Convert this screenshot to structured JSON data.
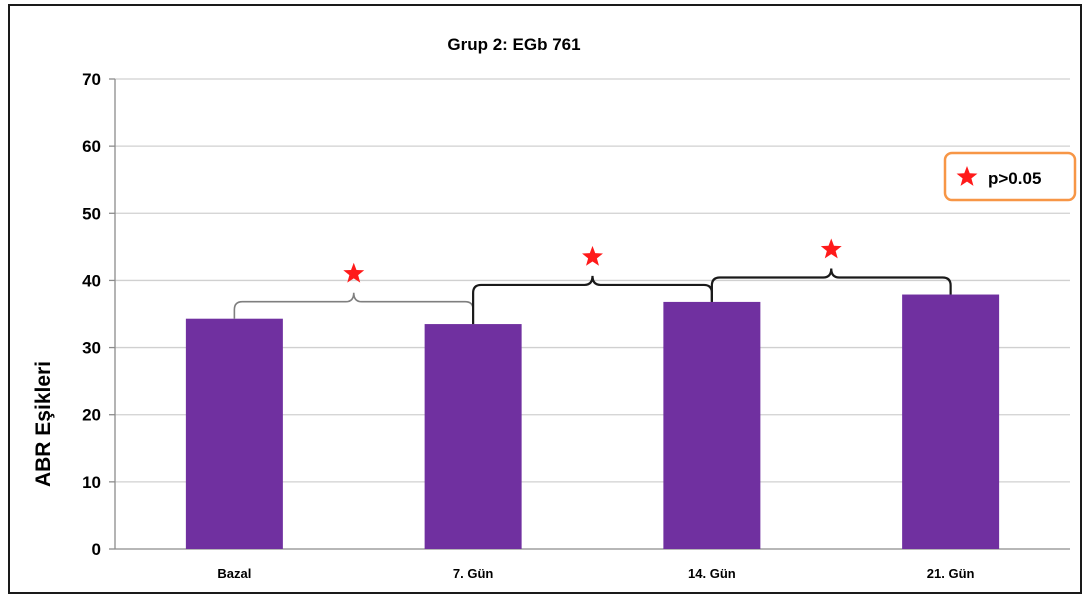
{
  "chart_data": {
    "type": "bar",
    "title": "Grup 2: EGb 761",
    "xlabel": "",
    "ylabel": "ABR Eşikleri",
    "categories": [
      "Bazal",
      "7. Gün",
      "14. Gün",
      "21. Gün"
    ],
    "values": [
      34.3,
      33.5,
      36.8,
      37.9
    ],
    "ylim": [
      0,
      70
    ],
    "yticks": [
      0,
      10,
      20,
      30,
      40,
      50,
      60,
      70
    ],
    "grid": true,
    "bar_color": "#7030a0",
    "legend": {
      "text": "p>0.05",
      "placement": "top-right",
      "symbol": "red-star",
      "border_color": "#f79646"
    },
    "comparisons": [
      {
        "from": "Bazal",
        "to": "7. Gün",
        "marker": "red-star"
      },
      {
        "from": "7. Gün",
        "to": "14. Gün",
        "marker": "red-star"
      },
      {
        "from": "14. Gün",
        "to": "21. Gün",
        "marker": "red-star"
      }
    ]
  }
}
